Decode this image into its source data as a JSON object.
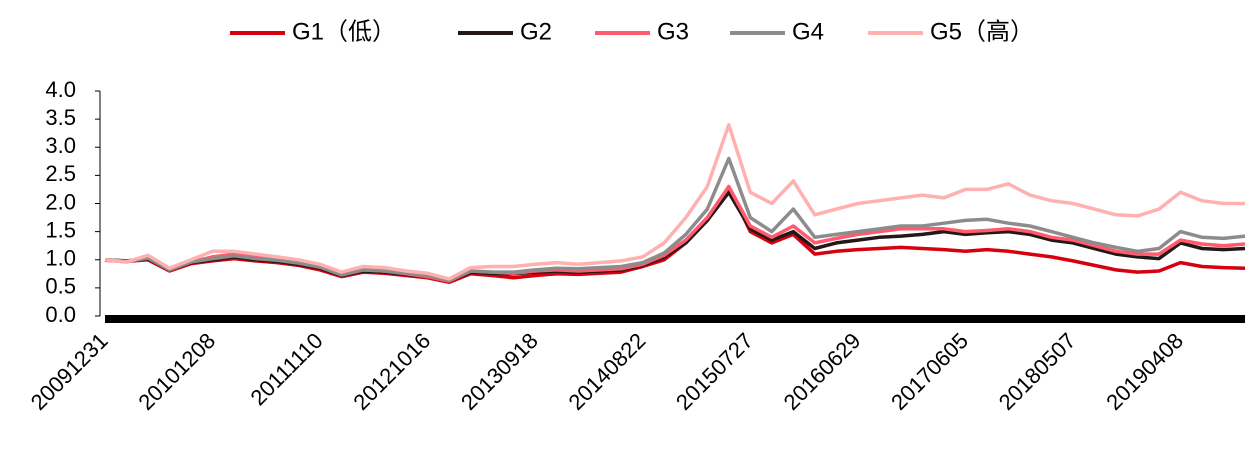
{
  "chart_data": {
    "type": "line",
    "categories": [
      "20091231",
      null,
      null,
      null,
      null,
      "20101208",
      null,
      null,
      null,
      null,
      "20111110",
      null,
      null,
      null,
      null,
      "20121016",
      null,
      null,
      null,
      null,
      "20130918",
      null,
      null,
      null,
      null,
      "20140822",
      null,
      null,
      null,
      null,
      "20150727",
      null,
      null,
      null,
      null,
      "20160629",
      null,
      null,
      null,
      null,
      "20170605",
      null,
      null,
      null,
      null,
      "20180507",
      null,
      null,
      null,
      null,
      "20190408",
      null,
      null,
      null
    ],
    "series": [
      {
        "name": "G1（低）",
        "color": "#d7000f",
        "values": [
          0.99,
          0.97,
          1.0,
          0.8,
          0.93,
          0.98,
          1.02,
          0.98,
          0.95,
          0.9,
          0.82,
          0.7,
          0.78,
          0.76,
          0.72,
          0.68,
          0.6,
          0.75,
          0.72,
          0.68,
          0.72,
          0.75,
          0.74,
          0.76,
          0.78,
          0.88,
          1.0,
          1.3,
          1.7,
          2.3,
          1.5,
          1.3,
          1.45,
          1.1,
          1.15,
          1.18,
          1.2,
          1.22,
          1.2,
          1.18,
          1.15,
          1.18,
          1.15,
          1.1,
          1.05,
          0.98,
          0.9,
          0.82,
          0.78,
          0.8,
          0.95,
          0.88,
          0.86,
          0.85
        ]
      },
      {
        "name": "G2",
        "color": "#231815",
        "values": [
          1.0,
          0.98,
          1.02,
          0.82,
          0.95,
          1.0,
          1.05,
          1.0,
          0.97,
          0.92,
          0.85,
          0.72,
          0.8,
          0.78,
          0.74,
          0.7,
          0.62,
          0.78,
          0.76,
          0.75,
          0.78,
          0.8,
          0.78,
          0.8,
          0.82,
          0.9,
          1.05,
          1.3,
          1.7,
          2.2,
          1.55,
          1.35,
          1.5,
          1.2,
          1.3,
          1.35,
          1.4,
          1.42,
          1.45,
          1.5,
          1.45,
          1.48,
          1.5,
          1.45,
          1.35,
          1.3,
          1.2,
          1.1,
          1.05,
          1.02,
          1.3,
          1.2,
          1.18,
          1.2
        ]
      },
      {
        "name": "G3",
        "color": "#ff5a6e",
        "values": [
          1.0,
          0.96,
          1.04,
          0.82,
          0.96,
          1.05,
          1.1,
          1.05,
          1.0,
          0.95,
          0.87,
          0.73,
          0.82,
          0.8,
          0.75,
          0.7,
          0.62,
          0.8,
          0.78,
          0.76,
          0.8,
          0.82,
          0.8,
          0.82,
          0.84,
          0.92,
          1.08,
          1.35,
          1.75,
          2.3,
          1.6,
          1.4,
          1.6,
          1.3,
          1.38,
          1.45,
          1.5,
          1.55,
          1.55,
          1.55,
          1.5,
          1.52,
          1.55,
          1.5,
          1.4,
          1.35,
          1.25,
          1.15,
          1.1,
          1.1,
          1.35,
          1.28,
          1.25,
          1.28
        ]
      },
      {
        "name": "G4",
        "color": "#8c8c8c",
        "values": [
          1.0,
          0.97,
          1.03,
          0.82,
          0.96,
          1.02,
          1.07,
          1.02,
          0.99,
          0.94,
          0.87,
          0.73,
          0.82,
          0.8,
          0.76,
          0.72,
          0.64,
          0.8,
          0.78,
          0.78,
          0.82,
          0.85,
          0.84,
          0.86,
          0.88,
          0.95,
          1.12,
          1.45,
          1.9,
          2.8,
          1.75,
          1.5,
          1.9,
          1.4,
          1.45,
          1.5,
          1.55,
          1.6,
          1.6,
          1.65,
          1.7,
          1.72,
          1.65,
          1.6,
          1.5,
          1.4,
          1.3,
          1.22,
          1.15,
          1.2,
          1.5,
          1.4,
          1.38,
          1.42
        ]
      },
      {
        "name": "G5（高）",
        "color": "#ffb0b0",
        "values": [
          1.0,
          0.96,
          1.08,
          0.85,
          1.0,
          1.15,
          1.15,
          1.1,
          1.05,
          1.0,
          0.92,
          0.78,
          0.88,
          0.86,
          0.8,
          0.76,
          0.66,
          0.86,
          0.88,
          0.88,
          0.92,
          0.95,
          0.92,
          0.95,
          0.98,
          1.05,
          1.3,
          1.75,
          2.3,
          3.4,
          2.2,
          2.0,
          2.4,
          1.8,
          1.9,
          2.0,
          2.05,
          2.1,
          2.15,
          2.1,
          2.25,
          2.25,
          2.35,
          2.15,
          2.05,
          2.0,
          1.9,
          1.8,
          1.78,
          1.9,
          2.2,
          2.05,
          2.0,
          2.0
        ]
      }
    ],
    "ylim": [
      0,
      4
    ],
    "yticks": [
      {
        "value": 0,
        "label": "0.0"
      },
      0.5,
      {
        "value": 1,
        "label": "1.0"
      },
      1.5,
      {
        "value": 2,
        "label": "2.0"
      },
      2.5,
      {
        "value": 3,
        "label": "3.0"
      },
      3.5,
      {
        "value": 4,
        "label": "4.0"
      }
    ],
    "legend": "top"
  }
}
